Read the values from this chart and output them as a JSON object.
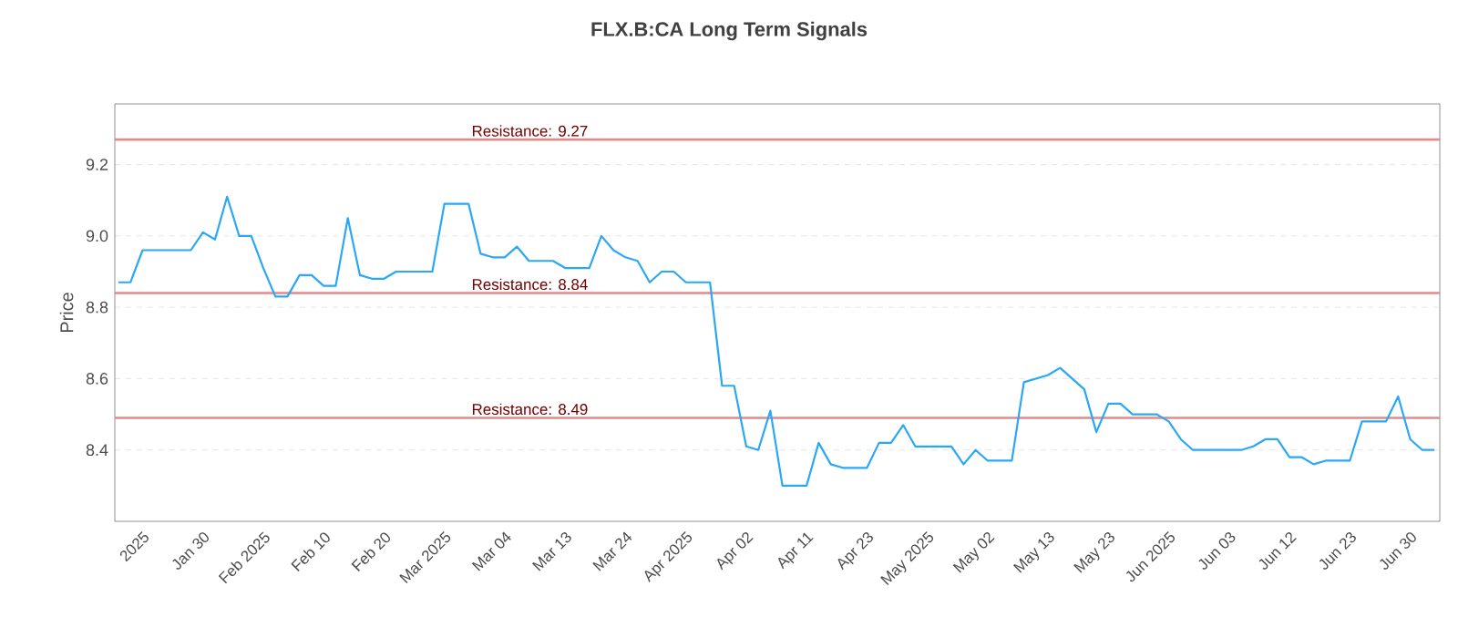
{
  "chart_data": {
    "type": "line",
    "title": "FLX.B:CA Long Term Signals",
    "ylabel": "Price",
    "categories": [
      null,
      null,
      "2025",
      null,
      null,
      null,
      null,
      "Jan 30",
      null,
      null,
      null,
      null,
      "Feb 2025",
      null,
      null,
      null,
      null,
      "Feb 10",
      null,
      null,
      null,
      null,
      "Feb 20",
      null,
      null,
      null,
      null,
      "Mar 2025",
      null,
      null,
      null,
      null,
      "Mar 04",
      null,
      null,
      null,
      null,
      "Mar 13",
      null,
      null,
      null,
      null,
      "Mar 24",
      null,
      null,
      null,
      null,
      "Apr 2025",
      null,
      null,
      null,
      null,
      "Apr 02",
      null,
      null,
      null,
      null,
      "Apr 11",
      null,
      null,
      null,
      null,
      "Apr 23",
      null,
      null,
      null,
      null,
      "May 2025",
      null,
      null,
      null,
      null,
      "May 02",
      null,
      null,
      null,
      null,
      "May 13",
      null,
      null,
      null,
      null,
      "May 23",
      null,
      null,
      null,
      null,
      "Jun 2025",
      null,
      null,
      null,
      null,
      "Jun 03",
      null,
      null,
      null,
      null,
      "Jun 12",
      null,
      null,
      null,
      null,
      "Jun 23",
      null,
      null,
      null,
      null,
      "Jun 30",
      null,
      null
    ],
    "series": [
      {
        "color": "#2aa7f5",
        "values": [
          8.87,
          8.87,
          8.96,
          8.96,
          8.96,
          8.96,
          8.96,
          9.01,
          8.99,
          9.11,
          9.0,
          9.0,
          8.91,
          8.83,
          8.83,
          8.89,
          8.89,
          8.86,
          8.86,
          9.05,
          8.89,
          8.88,
          8.88,
          8.9,
          8.9,
          8.9,
          8.9,
          9.09,
          9.09,
          9.09,
          8.95,
          8.94,
          8.94,
          8.97,
          8.93,
          8.93,
          8.93,
          8.91,
          8.91,
          8.91,
          9.0,
          8.96,
          8.94,
          8.93,
          8.87,
          8.9,
          8.9,
          8.87,
          8.87,
          8.87,
          8.58,
          8.58,
          8.41,
          8.4,
          8.51,
          8.3,
          8.3,
          8.3,
          8.42,
          8.36,
          8.35,
          8.35,
          8.35,
          8.42,
          8.42,
          8.47,
          8.41,
          8.41,
          8.41,
          8.41,
          8.36,
          8.4,
          8.37,
          8.37,
          8.37,
          8.59,
          8.6,
          8.61,
          8.63,
          8.6,
          8.57,
          8.45,
          8.53,
          8.53,
          8.5,
          8.5,
          8.5,
          8.48,
          8.43,
          8.4,
          8.4,
          8.4,
          8.4,
          8.4,
          8.41,
          8.43,
          8.43,
          8.38,
          8.38,
          8.36,
          8.37,
          8.37,
          8.37,
          8.48,
          8.48,
          8.48,
          8.55,
          8.43,
          8.4,
          8.4
        ]
      }
    ],
    "ylim": [
      8.2,
      9.37
    ],
    "yticks": [
      8.4,
      8.6,
      8.8,
      {
        "value": 9.0,
        "label": "9.0"
      },
      9.2
    ],
    "grid": "y",
    "marker": "none",
    "line_style": "solid",
    "ref_lines": [
      {
        "axis": "y",
        "value": 9.27,
        "label": "Resistance: 9.27",
        "color": "#e08b8b"
      },
      {
        "axis": "y",
        "value": 8.84,
        "label": "Resistance: 8.84",
        "color": "#e08b8b"
      },
      {
        "axis": "y",
        "value": 8.49,
        "label": "Resistance: 8.49",
        "color": "#e08b8b"
      }
    ]
  }
}
